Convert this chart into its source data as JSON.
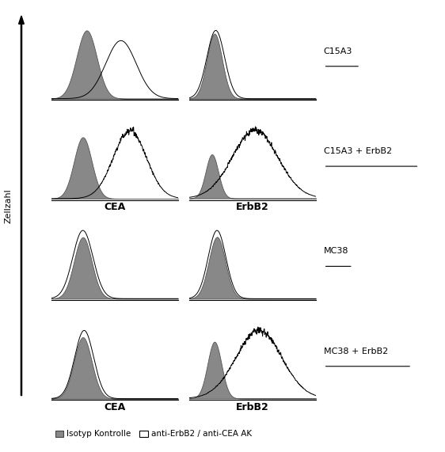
{
  "figure_width": 5.62,
  "figure_height": 5.71,
  "dpi": 100,
  "background_color": "#ffffff",
  "gray_fill": "#888888",
  "row_labels": [
    "C15A3",
    "C15A3 + ErbB2",
    "MC38",
    "MC38 + ErbB2"
  ],
  "y_arrow_label": "Zellzahl",
  "legend_items": [
    "Isotyp Kontrolle",
    "anti-ErbB2 / anti-CEA AK"
  ],
  "panels": [
    {
      "row": 0,
      "col": 0,
      "gray_mu": 0.28,
      "gray_sigma": 0.08,
      "gray_amp": 1.0,
      "line_mu": 0.55,
      "line_sigma": 0.12,
      "line_amp": 0.85,
      "noisy": false,
      "line_jagged": false
    },
    {
      "row": 0,
      "col": 1,
      "gray_mu": 0.2,
      "gray_sigma": 0.06,
      "gray_amp": 1.0,
      "line_mu": 0.21,
      "line_sigma": 0.07,
      "line_amp": 1.05,
      "noisy": false,
      "line_jagged": false
    },
    {
      "row": 1,
      "col": 0,
      "gray_mu": 0.25,
      "gray_sigma": 0.07,
      "gray_amp": 0.9,
      "line_mu": 0.62,
      "line_sigma": 0.13,
      "line_amp": 1.0,
      "noisy": true,
      "line_jagged": true
    },
    {
      "row": 1,
      "col": 1,
      "gray_mu": 0.18,
      "gray_sigma": 0.05,
      "gray_amp": 0.55,
      "line_mu": 0.52,
      "line_sigma": 0.18,
      "line_amp": 0.85,
      "noisy": true,
      "line_jagged": true
    },
    {
      "row": 2,
      "col": 0,
      "gray_mu": 0.25,
      "gray_sigma": 0.07,
      "gray_amp": 0.9,
      "line_mu": 0.25,
      "line_sigma": 0.08,
      "line_amp": 1.0,
      "noisy": false,
      "line_jagged": false
    },
    {
      "row": 2,
      "col": 1,
      "gray_mu": 0.22,
      "gray_sigma": 0.065,
      "gray_amp": 0.95,
      "line_mu": 0.22,
      "line_sigma": 0.07,
      "line_amp": 1.05,
      "noisy": false,
      "line_jagged": false
    },
    {
      "row": 3,
      "col": 0,
      "gray_mu": 0.25,
      "gray_sigma": 0.07,
      "gray_amp": 0.9,
      "line_mu": 0.26,
      "line_sigma": 0.075,
      "line_amp": 1.0,
      "noisy": false,
      "line_jagged": false
    },
    {
      "row": 3,
      "col": 1,
      "gray_mu": 0.2,
      "gray_sigma": 0.055,
      "gray_amp": 0.75,
      "line_mu": 0.55,
      "line_sigma": 0.18,
      "line_amp": 0.9,
      "noisy": true,
      "line_jagged": true
    }
  ]
}
